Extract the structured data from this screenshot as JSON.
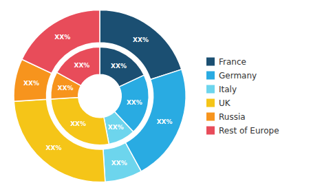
{
  "chart_data": {
    "type": "pie",
    "categories": [
      "France",
      "Germany",
      "Italy",
      "UK",
      "Russia",
      "Rest of Europe"
    ],
    "colors": [
      "#1b4f72",
      "#29abe2",
      "#6dd5ed",
      "#f5c518",
      "#f7941d",
      "#e84c5a"
    ],
    "series": [
      {
        "values": [
          20,
          22,
          7,
          25,
          8,
          18
        ],
        "value_labels": [
          "XX%",
          "XX%",
          "XX%",
          "XX%",
          "XX%",
          "XX%"
        ]
      },
      {
        "values": [
          18,
          20,
          9,
          27,
          9,
          17
        ],
        "value_labels": [
          "XX%",
          "XX%",
          "XX%",
          "XX%",
          "XX%",
          "XX%"
        ]
      }
    ],
    "data_labels": true,
    "legend": "right"
  }
}
